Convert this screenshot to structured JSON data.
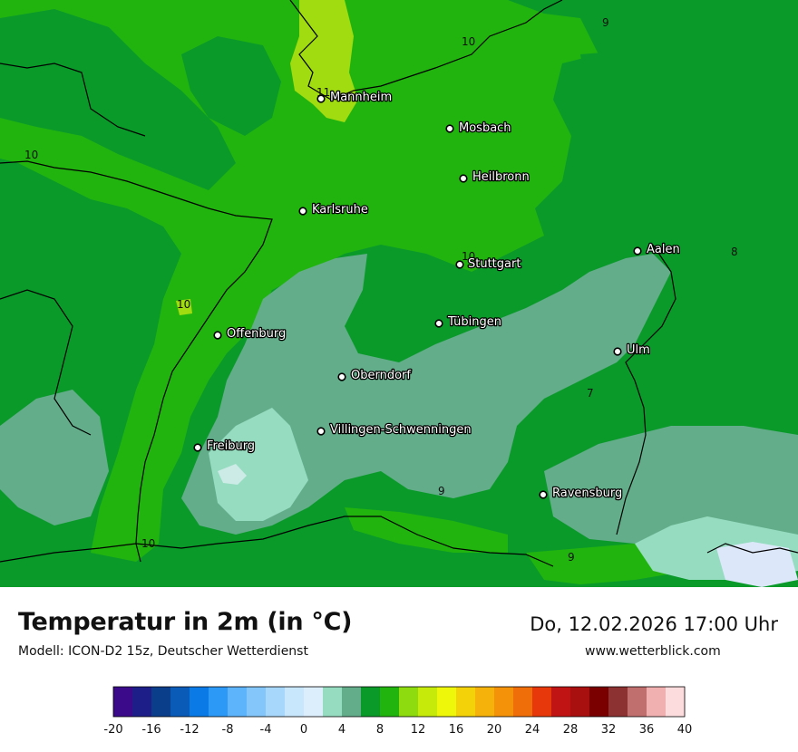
{
  "map": {
    "cities": [
      {
        "name": "Mannheim"
      },
      {
        "name": "Mosbach"
      },
      {
        "name": "Heilbronn"
      },
      {
        "name": "Karlsruhe"
      },
      {
        "name": "Stuttgart"
      },
      {
        "name": "Aalen"
      },
      {
        "name": "Tübingen"
      },
      {
        "name": "Offenburg"
      },
      {
        "name": "Ulm"
      },
      {
        "name": "Oberndorf"
      },
      {
        "name": "Villingen-Schwenningen"
      },
      {
        "name": "Freiburg"
      },
      {
        "name": "Ravensburg"
      }
    ],
    "isotherm_labels": [
      "9",
      "10",
      "10",
      "11",
      "10",
      "8",
      "10",
      "7",
      "9",
      "10",
      "9"
    ],
    "colors": {
      "temp_7_8": "#63ad8a",
      "temp_8_10": "#0a9a2a",
      "temp_10_12": "#22b40e",
      "temp_12_14": "#a0dc10",
      "temp_4_6": "#96dcc0",
      "temp_2_4": "#cceae6",
      "temp_0_2": "#dce8fa"
    }
  },
  "footer": {
    "title": "Temperatur in 2m (in °C)",
    "model": "Modell: ICON-D2 15z, Deutscher Wetterdienst",
    "datetime": "Do, 12.02.2026 17:00 Uhr",
    "website": "www.wetterblick.com"
  },
  "legend": {
    "colors": [
      "#3a0a8a",
      "#1e1e88",
      "#0a3d8a",
      "#0a5bb8",
      "#0a7be6",
      "#2d99f7",
      "#5eb4fa",
      "#84c6fa",
      "#a7d7fb",
      "#c8e6fc",
      "#dcedfb",
      "#96dcc0",
      "#63ad8a",
      "#0a9a2a",
      "#22b40e",
      "#8edc10",
      "#c6ea0a",
      "#eef60a",
      "#f4d20a",
      "#f4b20a",
      "#f4920a",
      "#f06e0a",
      "#e6380a",
      "#c01414",
      "#a80f0f",
      "#7a0000",
      "#8c3232",
      "#c06e6e",
      "#f0b0b0",
      "#fcdcdc"
    ],
    "ticks": [
      "-20",
      "-16",
      "-12",
      "-8",
      "-4",
      "0",
      "4",
      "8",
      "12",
      "16",
      "20",
      "24",
      "28",
      "32",
      "36",
      "40"
    ]
  }
}
